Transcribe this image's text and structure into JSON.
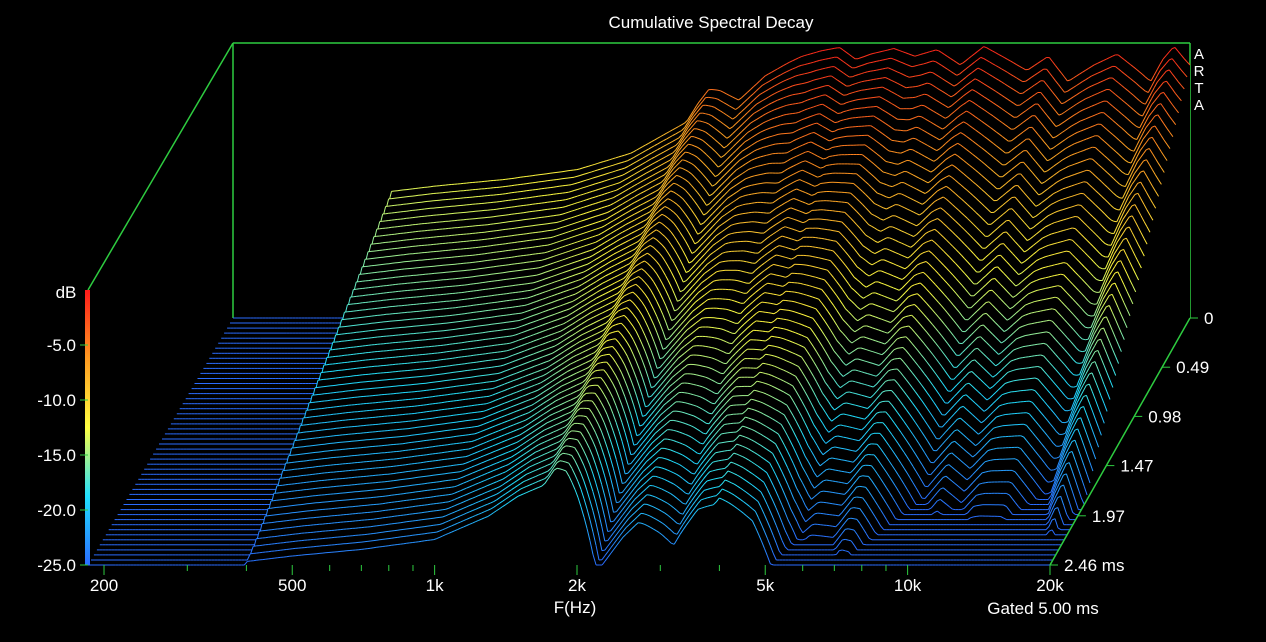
{
  "chart_data": {
    "type": "waterfall",
    "title": "Cumulative Spectral Decay",
    "brand": "ARTA",
    "xlabel": "F(Hz)",
    "zlabel": "dB",
    "footnote": "Gated 5.00 ms",
    "x_scale": "log",
    "xlim_hz": [
      185,
      20000
    ],
    "zlim_db": [
      -25,
      0
    ],
    "x_ticks": [
      {
        "value": 200,
        "label": "200"
      },
      {
        "value": 500,
        "label": "500"
      },
      {
        "value": 1000,
        "label": "1k"
      },
      {
        "value": 2000,
        "label": "2k"
      },
      {
        "value": 5000,
        "label": "5k"
      },
      {
        "value": 10000,
        "label": "10k"
      },
      {
        "value": 20000,
        "label": "20k"
      }
    ],
    "z_ticks": [
      {
        "value": -5,
        "label": "-5.0"
      },
      {
        "value": -10,
        "label": "-10.0"
      },
      {
        "value": -15,
        "label": "-15.0"
      },
      {
        "value": -20,
        "label": "-20.0"
      },
      {
        "value": -25,
        "label": "-25.0"
      }
    ],
    "time_ticks": [
      {
        "value": 0,
        "label": "0"
      },
      {
        "value": 0.49,
        "label": "0.49"
      },
      {
        "value": 0.98,
        "label": "0.98"
      },
      {
        "value": 1.47,
        "label": "1.47"
      },
      {
        "value": 1.97,
        "label": "1.97"
      },
      {
        "value": 2.46,
        "label": "2.46 ms"
      }
    ],
    "time_range_ms": [
      0,
      2.46
    ],
    "slice_count": 50,
    "color_scale": [
      "#2a6cff",
      "#20e0ff",
      "#ffff40",
      "#ff9a20",
      "#ff1a1a"
    ],
    "frame_color": "#2ecc40",
    "initial_response": {
      "freq_hz": [
        185,
        250,
        300,
        360,
        400,
        500,
        700,
        1000,
        1300,
        1500,
        1700,
        1800,
        1900,
        2000,
        2200,
        2500,
        2800,
        3000,
        3300,
        3600,
        3900,
        4200,
        4700,
        5200,
        5800,
        6500,
        7300,
        8200,
        9000,
        10000,
        11000,
        12500,
        14000,
        15500,
        16500,
        17500,
        18500,
        19500,
        20000
      ],
      "level_db": [
        -25,
        -25,
        -25,
        -25,
        -13.5,
        -13.0,
        -12.4,
        -11.5,
        -10.0,
        -8.5,
        -7.2,
        -5.5,
        -4.2,
        -4.3,
        -5.2,
        -3.0,
        -1.8,
        -1.2,
        -0.7,
        -0.4,
        -1.5,
        -1.0,
        -0.5,
        -1.2,
        -0.6,
        -2.0,
        -0.3,
        -1.5,
        -2.5,
        -1.2,
        -3.5,
        -2.0,
        -1.0,
        -2.5,
        -3.5,
        -1.5,
        -0.3,
        -1.5,
        -2.0
      ]
    },
    "decay_ms_per_db": {
      "freq_hz": [
        185,
        400,
        1000,
        1500,
        1800,
        2200,
        2700,
        3200,
        4000,
        4700,
        5500,
        7000,
        9000,
        12000,
        16000,
        18500,
        20000
      ],
      "ms_per_db": [
        0.1,
        0.22,
        0.22,
        0.24,
        0.23,
        0.12,
        0.13,
        0.11,
        0.14,
        0.12,
        0.09,
        0.1,
        0.08,
        0.09,
        0.08,
        0.09,
        0.08
      ]
    }
  }
}
